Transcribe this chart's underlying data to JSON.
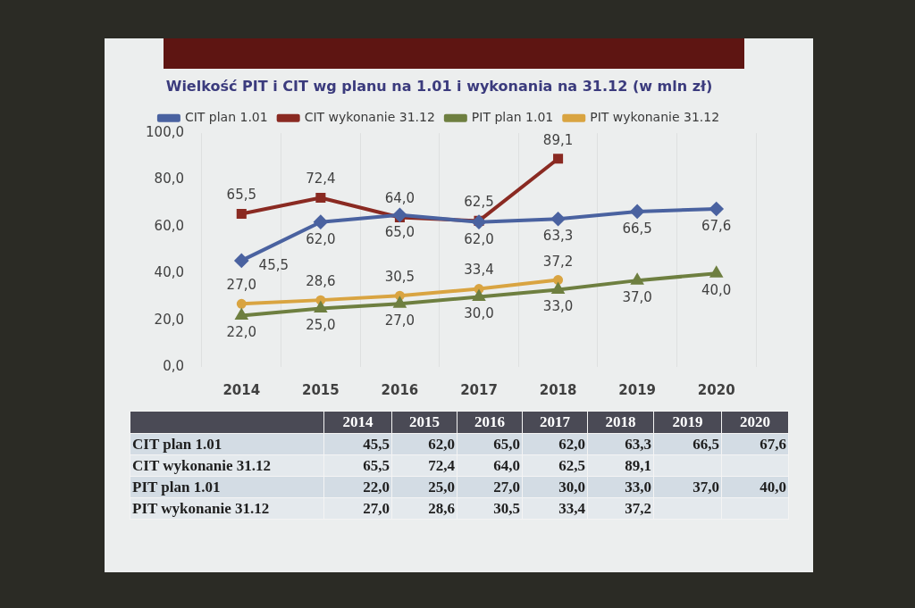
{
  "chart_data": {
    "type": "line",
    "title": "Wielkość PIT i CIT wg planu na 1.01 i wykonania na 31.12 (w mln zł)",
    "categories": [
      "2014",
      "2015",
      "2016",
      "2017",
      "2018",
      "2019",
      "2020"
    ],
    "series": [
      {
        "name": "CIT plan 1.01",
        "color": "#4a62a0",
        "marker": "diamond",
        "values": [
          45.5,
          62.0,
          65.0,
          62.0,
          63.3,
          66.5,
          67.6
        ],
        "value_labels": [
          "45,5",
          "62,0",
          "65,0",
          "62,0",
          "63,3",
          "66,5",
          "67,6"
        ]
      },
      {
        "name": "CIT wykonanie 31.12",
        "color": "#8a2a22",
        "marker": "square",
        "values": [
          65.5,
          72.4,
          64.0,
          62.5,
          89.1,
          null,
          null
        ],
        "value_labels": [
          "65,5",
          "72,4",
          "64,0",
          "62,5",
          "89,1",
          null,
          null
        ]
      },
      {
        "name": "PIT plan 1.01",
        "color": "#6e7f40",
        "marker": "triangle",
        "values": [
          22.0,
          25.0,
          27.0,
          30.0,
          33.0,
          37.0,
          40.0
        ],
        "value_labels": [
          "22,0",
          "25,0",
          "27,0",
          "30,0",
          "33,0",
          "37,0",
          "40,0"
        ]
      },
      {
        "name": "PIT wykonanie 31.12",
        "color": "#d9a441",
        "marker": "circle",
        "values": [
          27.0,
          28.6,
          30.5,
          33.4,
          37.2,
          null,
          null
        ],
        "value_labels": [
          "27,0",
          "28,6",
          "30,5",
          "33,4",
          "37,2",
          null,
          null
        ]
      }
    ],
    "ylim": [
      0,
      100
    ],
    "yticks": [
      {
        "value": 0,
        "label": "0,0"
      },
      {
        "value": 20,
        "label": "20,0"
      },
      {
        "value": 40,
        "label": "40,0"
      },
      {
        "value": 60,
        "label": "60,0"
      },
      {
        "value": 80,
        "label": "80,0"
      },
      {
        "value": 100,
        "label": "100,0"
      }
    ],
    "grid": "x",
    "legend": "top",
    "line_style": "solid"
  }
}
